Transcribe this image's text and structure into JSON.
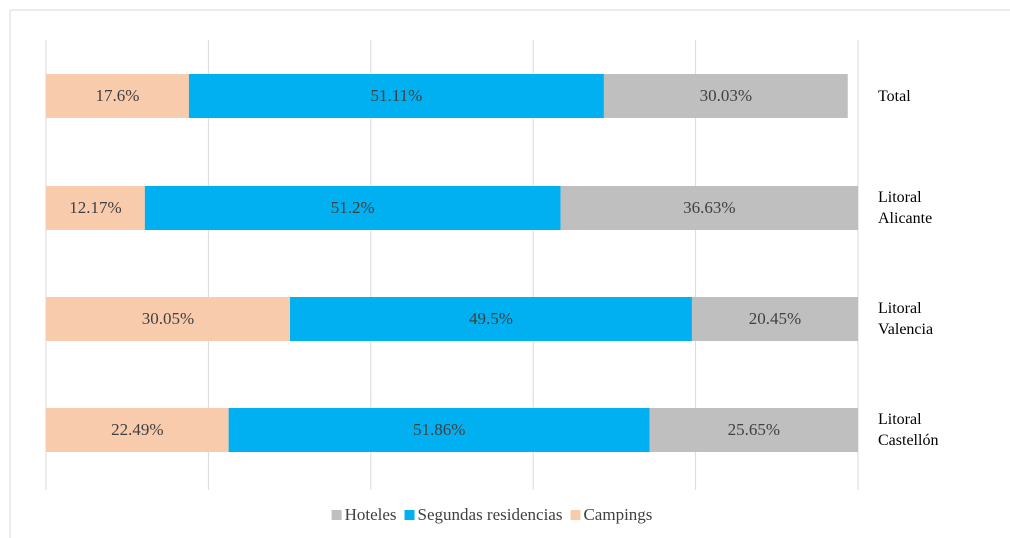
{
  "chart_data": {
    "type": "stacked_bar_horizontal",
    "categories": [
      "Total",
      "Litoral Alicante",
      "Litoral Valencia",
      "Litoral Castellón"
    ],
    "series": [
      {
        "name": "Campings",
        "color": "#f8cbad",
        "values": [
          17.6,
          12.17,
          30.05,
          22.49
        ],
        "value_labels": [
          "17.6%",
          "12.17%",
          "30.05%",
          "22.49%"
        ]
      },
      {
        "name": "Segundas residencias",
        "color": "#00b0f0",
        "values": [
          51.11,
          51.2,
          49.5,
          51.86
        ],
        "value_labels": [
          "51.11%",
          "51.2%",
          "49.5%",
          "51.86%"
        ]
      },
      {
        "name": "Hoteles",
        "color": "#bfbfbf",
        "values": [
          30.03,
          36.63,
          20.45,
          25.65
        ],
        "value_labels": [
          "30.03%",
          "36.63%",
          "20.45%",
          "25.65%"
        ]
      }
    ],
    "legend_order": [
      "Hoteles",
      "Segundas residencias",
      "Campings"
    ],
    "xlim": [
      0,
      100
    ],
    "xticks": [
      0,
      20,
      40,
      60,
      80,
      100
    ],
    "grid": true,
    "legend": "bottom"
  }
}
